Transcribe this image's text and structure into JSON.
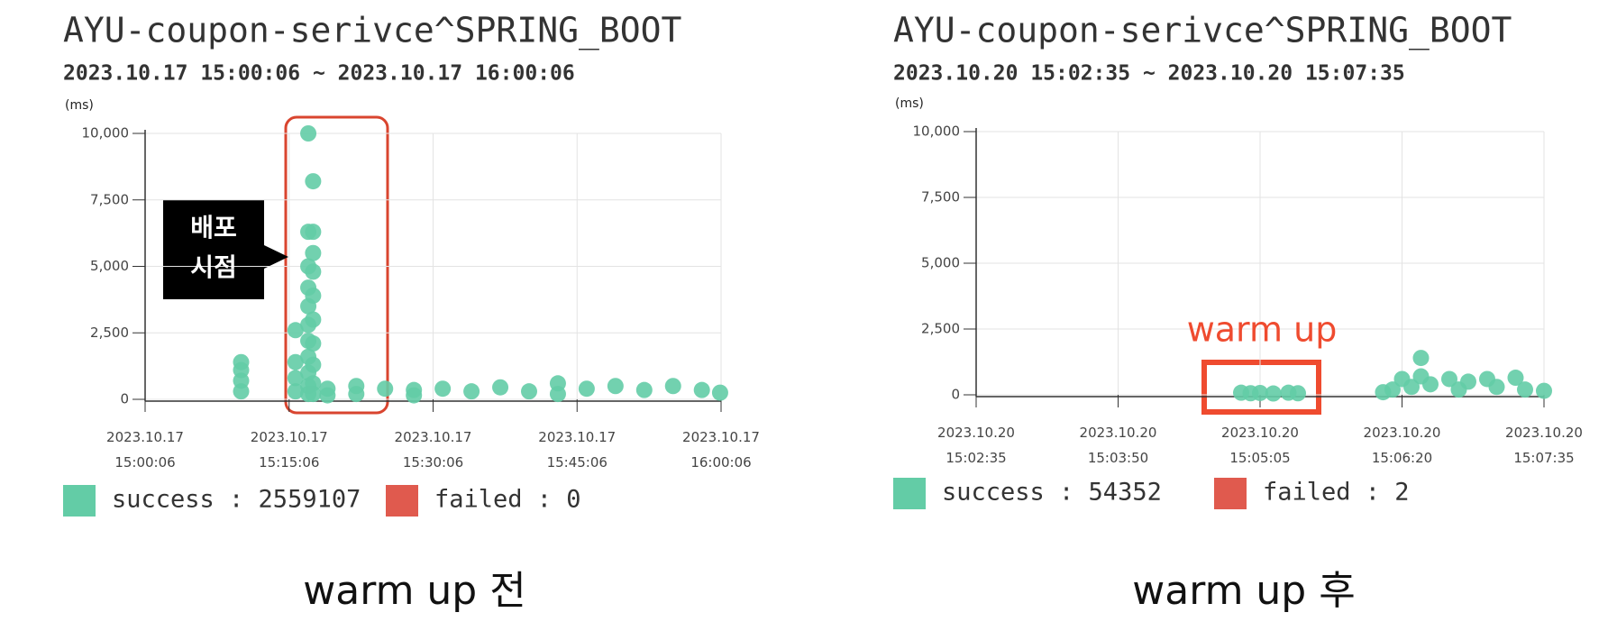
{
  "chart_data": [
    {
      "type": "scatter",
      "title": "AYU-coupon-serivce^SPRING_BOOT",
      "subtitle": "2023.10.17 15:00:06 ~ 2023.10.17 16:00:06",
      "y_label": "(ms)",
      "caption": "warm up 전",
      "annotation": [
        "배포",
        "시점"
      ],
      "xlim": [
        "2023.10.17 15:00:06",
        "2023.10.17 16:00:06"
      ],
      "xticks": [
        "2023.10.17 15:00:06",
        "2023.10.17 15:15:06",
        "2023.10.17 15:30:06",
        "2023.10.17 15:45:06",
        "2023.10.17 16:00:06"
      ],
      "ylim": [
        0,
        10000
      ],
      "yticks": [
        0,
        {
          "value": 2500,
          "label": "2,500"
        },
        {
          "value": 5000,
          "label": "5,000"
        },
        {
          "value": 7500,
          "label": "7,500"
        },
        {
          "value": 10000,
          "label": "10,000"
        }
      ],
      "grid": true,
      "series": [
        {
          "name": "success : 2559107",
          "color": "#63cca6",
          "x": [
            "2023.10.17 15:10:06",
            "2023.10.17 15:10:06",
            "2023.10.17 15:10:06",
            "2023.10.17 15:10:06",
            "2023.10.17 15:15:46",
            "2023.10.17 15:15:46",
            "2023.10.17 15:15:46",
            "2023.10.17 15:15:46",
            "2023.10.17 15:17:06",
            "2023.10.17 15:17:06",
            "2023.10.17 15:17:06",
            "2023.10.17 15:17:06",
            "2023.10.17 15:17:06",
            "2023.10.17 15:17:06",
            "2023.10.17 15:17:06",
            "2023.10.17 15:17:06",
            "2023.10.17 15:17:06",
            "2023.10.17 15:17:06",
            "2023.10.17 15:17:06",
            "2023.10.17 15:17:36",
            "2023.10.17 15:17:36",
            "2023.10.17 15:17:36",
            "2023.10.17 15:17:36",
            "2023.10.17 15:17:36",
            "2023.10.17 15:17:36",
            "2023.10.17 15:17:36",
            "2023.10.17 15:17:36",
            "2023.10.17 15:17:36",
            "2023.10.17 15:17:36",
            "2023.10.17 15:19:06",
            "2023.10.17 15:19:06",
            "2023.10.17 15:22:06",
            "2023.10.17 15:22:06",
            "2023.10.17 15:25:06",
            "2023.10.17 15:28:06",
            "2023.10.17 15:28:06",
            "2023.10.17 15:31:06",
            "2023.10.17 15:34:06",
            "2023.10.17 15:37:06",
            "2023.10.17 15:40:06",
            "2023.10.17 15:43:06",
            "2023.10.17 15:43:06",
            "2023.10.17 15:46:06",
            "2023.10.17 15:49:06",
            "2023.10.17 15:52:06",
            "2023.10.17 15:55:06",
            "2023.10.17 15:58:06",
            "2023.10.17 16:00:00"
          ],
          "values": [
            300,
            700,
            1100,
            1400,
            300,
            800,
            1400,
            2600,
            10000,
            6300,
            5000,
            4200,
            3500,
            2800,
            2200,
            1600,
            1000,
            500,
            200,
            8200,
            6300,
            5500,
            4800,
            3900,
            3000,
            2100,
            1300,
            600,
            200,
            400,
            150,
            500,
            200,
            400,
            350,
            150,
            400,
            300,
            450,
            300,
            600,
            200,
            400,
            500,
            350,
            500,
            350,
            250
          ]
        },
        {
          "name": "failed : 0",
          "color": "#e05a4e",
          "x": [],
          "values": []
        }
      ]
    },
    {
      "type": "scatter",
      "title": "AYU-coupon-serivce^SPRING_BOOT",
      "subtitle": "2023.10.20 15:02:35 ~ 2023.10.20 15:07:35",
      "y_label": "(ms)",
      "caption": "warm up 후",
      "annotation": [
        "warm up"
      ],
      "xlim": [
        "2023.10.20 15:02:35",
        "2023.10.20 15:07:35"
      ],
      "xticks": [
        "2023.10.20 15:02:35",
        "2023.10.20 15:03:50",
        "2023.10.20 15:05:05",
        "2023.10.20 15:06:20",
        "2023.10.20 15:07:35"
      ],
      "ylim": [
        0,
        10000
      ],
      "yticks": [
        0,
        {
          "value": 2500,
          "label": "2,500"
        },
        {
          "value": 5000,
          "label": "5,000"
        },
        {
          "value": 7500,
          "label": "7,500"
        },
        {
          "value": 10000,
          "label": "10,000"
        }
      ],
      "grid": true,
      "series": [
        {
          "name": "success : 54352",
          "color": "#63cca6",
          "x": [
            "2023.10.20 15:04:55",
            "2023.10.20 15:05:00",
            "2023.10.20 15:05:05",
            "2023.10.20 15:05:12",
            "2023.10.20 15:05:20",
            "2023.10.20 15:05:25",
            "2023.10.20 15:06:10",
            "2023.10.20 15:06:15",
            "2023.10.20 15:06:20",
            "2023.10.20 15:06:25",
            "2023.10.20 15:06:30",
            "2023.10.20 15:06:30",
            "2023.10.20 15:06:35",
            "2023.10.20 15:06:45",
            "2023.10.20 15:06:50",
            "2023.10.20 15:06:55",
            "2023.10.20 15:07:05",
            "2023.10.20 15:07:10",
            "2023.10.20 15:07:20",
            "2023.10.20 15:07:25",
            "2023.10.20 15:07:35"
          ],
          "values": [
            80,
            60,
            70,
            50,
            80,
            60,
            100,
            200,
            600,
            300,
            1400,
            700,
            400,
            600,
            200,
            500,
            600,
            300,
            650,
            200,
            150
          ]
        },
        {
          "name": "failed : 2",
          "color": "#e05a4e",
          "x": [],
          "values": []
        }
      ]
    }
  ]
}
